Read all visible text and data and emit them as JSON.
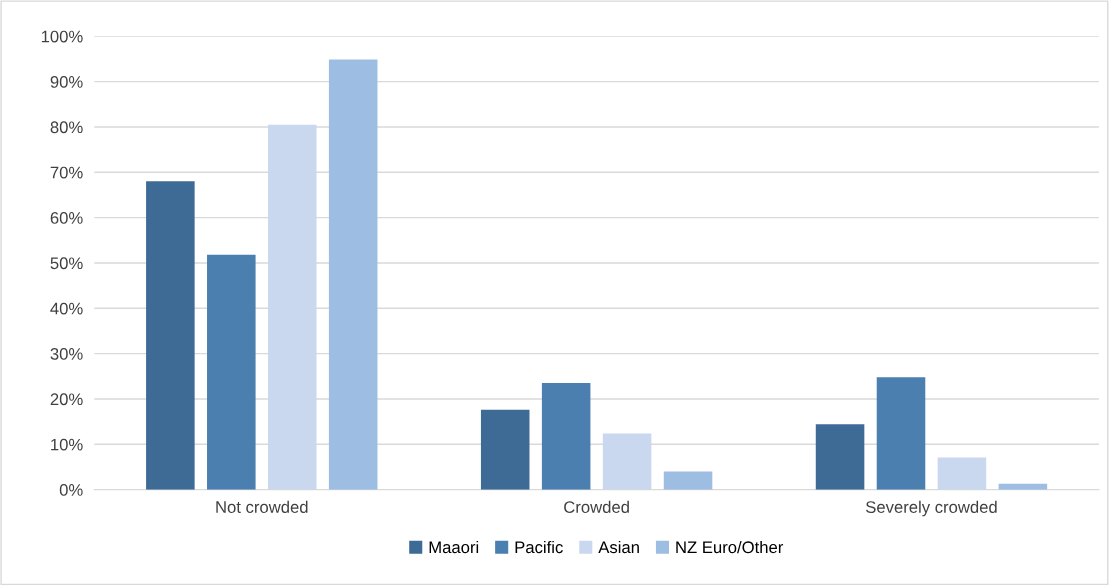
{
  "chart_data": {
    "type": "bar",
    "categories": [
      "Not crowded",
      "Crowded",
      "Severely crowded"
    ],
    "series": [
      {
        "name": "Maaori",
        "color": "#3e6a96",
        "values": [
          68,
          17.6,
          14.4
        ]
      },
      {
        "name": "Pacific",
        "color": "#4a7fb0",
        "values": [
          51.8,
          23.5,
          24.8
        ]
      },
      {
        "name": "Asian",
        "color": "#c9d8ee",
        "values": [
          80.5,
          12.4,
          7.1
        ]
      },
      {
        "name": "NZ Euro/Other",
        "color": "#9dbde2",
        "values": [
          94.9,
          4.0,
          1.3
        ]
      }
    ],
    "ylim": [
      0,
      100
    ],
    "yticks": [
      {
        "value": 0,
        "label": "0%"
      },
      {
        "value": 10,
        "label": "10%"
      },
      {
        "value": 20,
        "label": "20%"
      },
      {
        "value": 30,
        "label": "30%"
      },
      {
        "value": 40,
        "label": "40%"
      },
      {
        "value": 50,
        "label": "50%"
      },
      {
        "value": 60,
        "label": "60%"
      },
      {
        "value": 70,
        "label": "70%"
      },
      {
        "value": 80,
        "label": "80%"
      },
      {
        "value": 90,
        "label": "90%"
      },
      {
        "value": 100,
        "label": "100%"
      }
    ],
    "grid": "y",
    "legend": "bottom"
  }
}
